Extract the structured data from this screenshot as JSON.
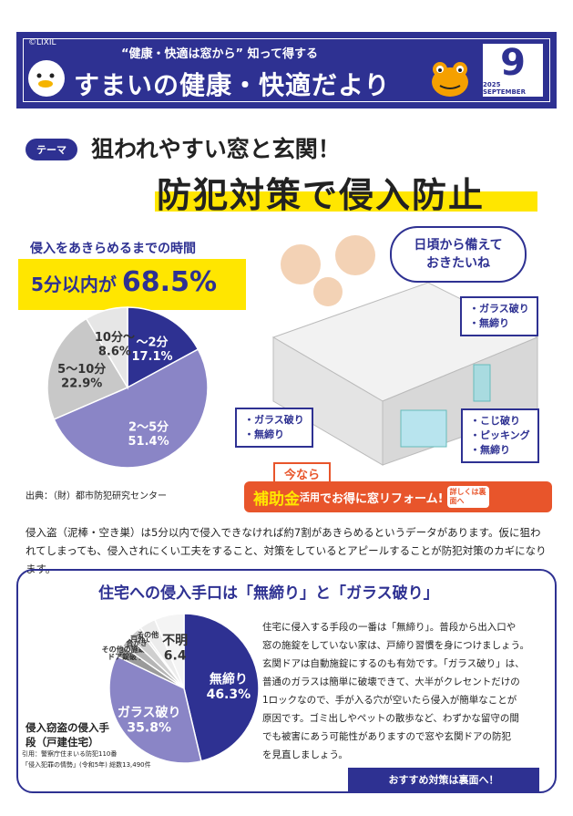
{
  "header": {
    "copyright": "©LIXIL",
    "subtitle": "“健康・快適は窓から” 知って得する",
    "title": "すまいの健康・快適だより",
    "month": "9",
    "date": "2025 SEPTEMBER"
  },
  "theme": {
    "tag": "テーマ",
    "line1": "狙われやすい窓と玄関！",
    "line2": "防犯対策で侵入防止"
  },
  "stat": {
    "heading": "侵入をあきらめるまでの時間",
    "big_prefix": "5分以内が",
    "big_value": "68.5%",
    "source": "出典：（財）都市防犯研究センター"
  },
  "speech": "日頃から備えておきたいね",
  "callouts": {
    "upper": [
      "・ガラス破り",
      "・無締り"
    ],
    "left": [
      "・ガラス破り",
      "・無締り"
    ],
    "right": [
      "・こじ破り",
      "・ピッキング",
      "・無締り"
    ]
  },
  "banner": {
    "now": "今なら",
    "main1": "補助金",
    "main2": "活用",
    "main3": "でお得に窓リフォーム!",
    "side": "詳しくは裏面へ"
  },
  "paragraph": "侵入盗（泥棒・空き巣）は5分以内で侵入できなければ約7割があきらめるというデータがあります。仮に狙われてしまっても、侵入されにくい工夫をすること、対策をしているとアピールすることが防犯対策のカギになります。",
  "section": {
    "title": "住宅への侵入手口は「無締り」と「ガラス破り」",
    "chart_title": "侵入窃盗の侵入手段（戸建住宅）",
    "citation1": "引用：警察庁住まいる防犯110番",
    "citation2": "「侵入犯罪の情勢」(令和5年) 総数13,490件",
    "body": [
      "住宅に侵入する手段の一番は「無締り」。普段から出入口や",
      "窓の施錠をしていない家は、戸締り習慣を身につけましょう。",
      "玄関ドアは自動施錠にするのも有効です。「ガラス破り」は、",
      "普通のガラスは簡単に破壊できて、大半がクレセントだけの",
      "1ロックなので、手が入る穴が空いたら侵入が簡単なことが",
      "原因です。ゴミ出しやペットの散歩など、わずかな留守の間",
      "でも被害にあう可能性がありますので窓や玄関ドアの防犯",
      "を見直しましょう。"
    ],
    "cta": "おすすめ対策は裏面へ！"
  },
  "chart_data": [
    {
      "type": "pie",
      "slices": [
        {
          "label": "〜2分",
          "value": 17.1,
          "display": "17.1%",
          "color": "#2e3192"
        },
        {
          "label": "2〜5分",
          "value": 51.4,
          "display": "51.4%",
          "color": "#8a85c6"
        },
        {
          "label": "5〜10分",
          "value": 22.9,
          "display": "22.9%",
          "color": "#c8c8c8"
        },
        {
          "label": "10分〜",
          "value": 8.6,
          "display": "8.6%",
          "color": "#e6e6e6"
        }
      ]
    },
    {
      "type": "pie",
      "title": "侵入窃盗の侵入手段（戸建住宅）",
      "slices": [
        {
          "label": "無締り",
          "value": 46.3,
          "display": "46.3%",
          "color": "#2e3192"
        },
        {
          "label": "ガラス破り",
          "value": 35.8,
          "display": "35.8%",
          "color": "#8a85c6"
        },
        {
          "label": "ドア錠破り",
          "value": 2.5,
          "display": "2.5",
          "color": "#9a9a9a"
        },
        {
          "label": "その他の施錠開け",
          "value": 2.3,
          "display": "2.3",
          "color": "#b5b5b5"
        },
        {
          "label": "合かぎ",
          "value": 2.6,
          "display": "2.6",
          "color": "#cfcfcf"
        },
        {
          "label": "戸外し",
          "value": 0.6,
          "display": "0.6",
          "color": "#e0e0e0"
        },
        {
          "label": "その他",
          "value": 3.5,
          "display": "3.5",
          "color": "#ececec"
        },
        {
          "label": "不明",
          "value": 6.4,
          "display": "6.4",
          "color": "#f4f4f4"
        }
      ]
    }
  ]
}
